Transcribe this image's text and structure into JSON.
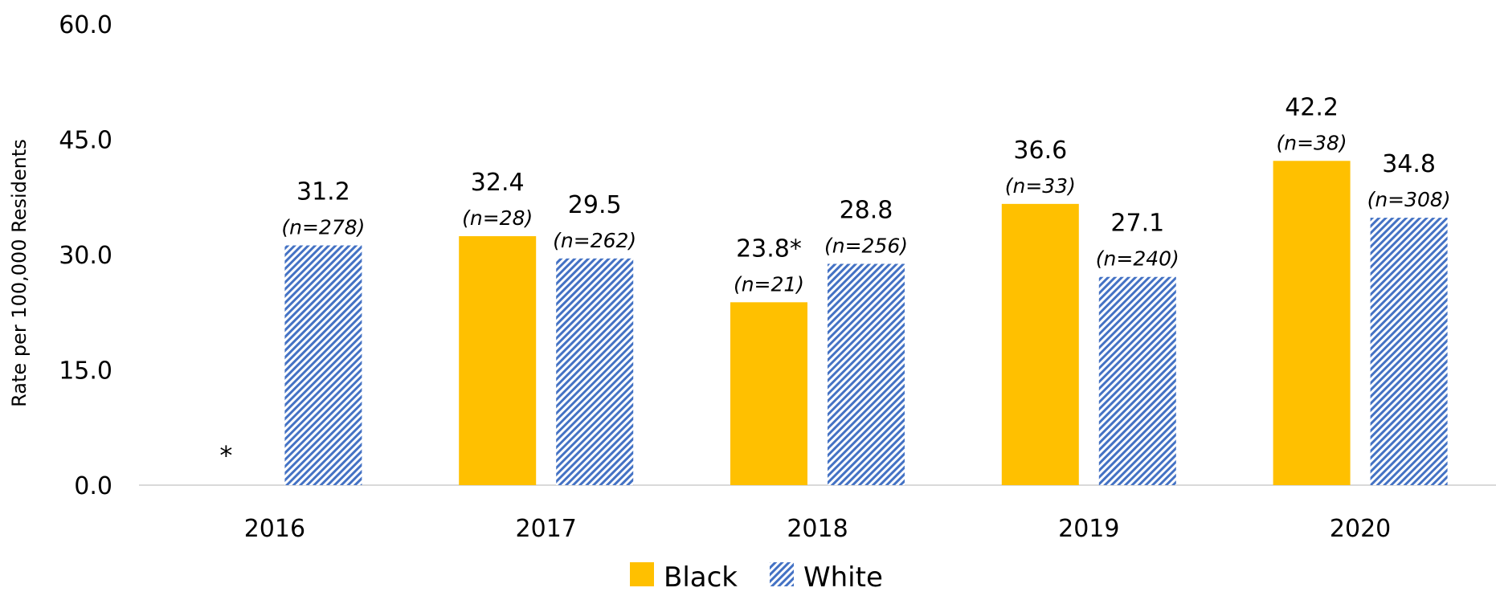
{
  "chart_data": {
    "type": "bar",
    "title": "",
    "xlabel": "",
    "ylabel": "Rate per 100,000 Residents",
    "ylim": [
      0,
      60
    ],
    "yticks": [
      "0.0",
      "15.0",
      "30.0",
      "45.0",
      "60.0"
    ],
    "categories": [
      "2016",
      "2017",
      "2018",
      "2019",
      "2020"
    ],
    "series": [
      {
        "name": "Black",
        "color": "#FFC000",
        "pattern": "solid",
        "values": [
          null,
          32.4,
          23.8,
          36.6,
          42.2
        ],
        "labels": [
          "*",
          "32.4",
          "23.8*",
          "36.6",
          "42.2"
        ],
        "n_labels": [
          "",
          "(n=28)",
          "(n=21)",
          "(n=33)",
          "(n=38)"
        ]
      },
      {
        "name": "White",
        "color": "#4472C4",
        "pattern": "diagonal-hatch",
        "values": [
          31.2,
          29.5,
          28.8,
          27.1,
          34.8
        ],
        "labels": [
          "31.2",
          "29.5",
          "28.8",
          "27.1",
          "34.8"
        ],
        "n_labels": [
          "(n=278)",
          "(n=262)",
          "(n=256)",
          "(n=240)",
          "(n=308)"
        ]
      }
    ],
    "legend": "bottom-center",
    "grid": false
  }
}
